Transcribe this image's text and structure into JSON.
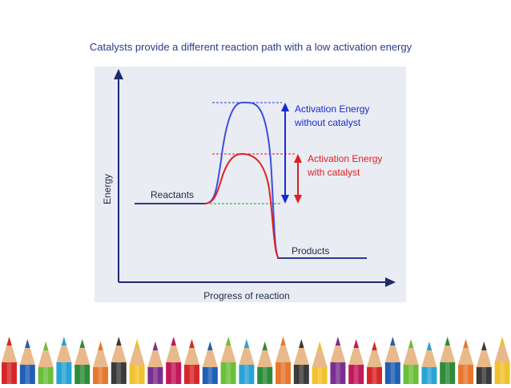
{
  "header": {
    "title": "Catalysts provide a different reaction path with a low activation energy"
  },
  "diagram": {
    "y_axis_label": "Energy",
    "x_axis_label": "Progress of reaction",
    "reactants_label": "Reactants",
    "products_label": "Products",
    "uncatalysed_label": [
      "Activation Energy",
      "without catalyst"
    ],
    "catalysed_label": [
      "Activation Energy",
      "with catalyst"
    ]
  }
}
